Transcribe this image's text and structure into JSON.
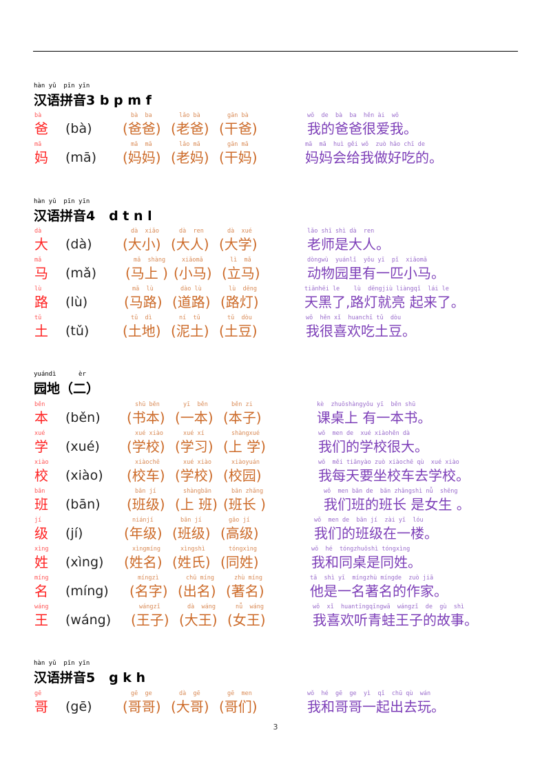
{
  "sections": [
    {
      "title_pinyin": "hàn yǔ  pīn yīn",
      "title": "汉语拼音3 b p m f",
      "rows": [
        {
          "char": "爸",
          "char_pinyin": "bà",
          "reading": "(bà)",
          "words": [
            {
              "pinyin": "bà  ba",
              "text": "(爸爸)"
            },
            {
              "pinyin": "lǎo bà",
              "text": "(老爸)"
            },
            {
              "pinyin": "gān bà",
              "text": "(干爸)"
            }
          ],
          "sentence": {
            "pinyin": "wǒ  de  bà  ba  hěn ài  wǒ",
            "text": "我的爸爸很爱我。"
          }
        },
        {
          "char": "妈",
          "char_pinyin": "mā",
          "reading": "(mā)",
          "words": [
            {
              "pinyin": "mā  mā",
              "text": "(妈妈)"
            },
            {
              "pinyin": "lǎo mā",
              "text": "(老妈)"
            },
            {
              "pinyin": "gān mā",
              "text": "(干妈)"
            }
          ],
          "sentence": {
            "pinyin": "mā  mā  huì gěi wǒ  zuò hǎo chī de",
            "text": "妈妈会给我做好吃的。"
          }
        }
      ]
    },
    {
      "title_pinyin": "hàn yǔ  pīn yīn",
      "title": "汉语拼音4   d t n l",
      "rows": [
        {
          "char": "大",
          "char_pinyin": "dà",
          "reading": "(dà)",
          "words": [
            {
              "pinyin": "dà  xiǎo",
              "text": "(大小)"
            },
            {
              "pinyin": "dà  ren",
              "text": "(大人)"
            },
            {
              "pinyin": "dà  xué",
              "text": "(大学)"
            }
          ],
          "sentence": {
            "pinyin": "lǎo shī shì dà  ren",
            "text": "老师是大人。"
          }
        },
        {
          "char": "马",
          "char_pinyin": "mǎ",
          "reading": "(mǎ)",
          "words": [
            {
              "pinyin": "mǎ  shàng",
              "text": "(马上 )"
            },
            {
              "pinyin": "xiǎomǎ",
              "text": "(小马)"
            },
            {
              "pinyin": "lì  mǎ",
              "text": "(立马)"
            }
          ],
          "sentence": {
            "pinyin": "dòngwù  yuánlǐ  yǒu yī  pǐ  xiǎomǎ",
            "text": "动物园里有一匹小马。"
          }
        },
        {
          "char": "路",
          "char_pinyin": "lù",
          "reading": "(lù)",
          "words": [
            {
              "pinyin": "mǎ  lù",
              "text": "(马路)"
            },
            {
              "pinyin": "dào lù",
              "text": "(道路)"
            },
            {
              "pinyin": "lù  dēng",
              "text": "(路灯)"
            }
          ],
          "sentence": {
            "pinyin": "tiānhēi le    lù  dēngjiù liàngqǐ  lái le",
            "text": "天黑了,路灯就亮 起来了。"
          }
        },
        {
          "char": "土",
          "char_pinyin": "tǔ",
          "reading": "(tǔ)",
          "words": [
            {
              "pinyin": "tǔ  dì",
              "text": "(土地)"
            },
            {
              "pinyin": "ní  tǔ",
              "text": "(泥土)"
            },
            {
              "pinyin": "tǔ  dòu",
              "text": "(土豆)"
            }
          ],
          "sentence": {
            "pinyin": "wǒ  hěn xǐ  huanchī tǔ  dòu",
            "text": "我很喜欢吃土豆。"
          }
        }
      ]
    },
    {
      "title_pinyin": "yuándì      èr",
      "title": "园地（二）",
      "rows": [
        {
          "char": "本",
          "char_pinyin": "běn",
          "reading": "(běn)",
          "words": [
            {
              "pinyin": "shū běn",
              "text": "(书本)"
            },
            {
              "pinyin": "yī  běn",
              "text": "(一本)"
            },
            {
              "pinyin": "běn zi",
              "text": "(本子)"
            }
          ],
          "sentence": {
            "pinyin": "kè  zhuōshàngyǒu yī  běn shū",
            "text": "课桌上 有一本书。"
          }
        },
        {
          "char": "学",
          "char_pinyin": "xué",
          "reading": "(xué)",
          "words": [
            {
              "pinyin": "xué xiào",
              "text": "(学校)"
            },
            {
              "pinyin": "xué xí",
              "text": "(学习)"
            },
            {
              "pinyin": "shàngxué",
              "text": "(上 学)"
            }
          ],
          "sentence": {
            "pinyin": "wǒ  men de  xué xiàohěn dà",
            "text": "我们的学校很大。"
          }
        },
        {
          "char": "校",
          "char_pinyin": "xiào",
          "reading": "(xiào)",
          "words": [
            {
              "pinyin": "xiàochē",
              "text": "(校车)"
            },
            {
              "pinyin": "xué xiào",
              "text": "(学校)"
            },
            {
              "pinyin": "xiàoyuán",
              "text": "(校园)"
            }
          ],
          "sentence": {
            "pinyin": "wǒ  měi tiānyào zuò xiàochē qù  xué xiào",
            "text": "我每天要坐校车去学校。"
          }
        },
        {
          "char": "班",
          "char_pinyin": "bān",
          "reading": "(bān)",
          "words": [
            {
              "pinyin": "bān jí",
              "text": "(班级)"
            },
            {
              "pinyin": "shàngbān",
              "text": "(上 班)"
            },
            {
              "pinyin": "bān zhǎng",
              "text": "(班长 )"
            }
          ],
          "sentence": {
            "pinyin": "wǒ  men bān de  bān zhǎngshì nǚ  shēng",
            "text": "我们班的班长 是女生 。"
          }
        },
        {
          "char": "级",
          "char_pinyin": "jí",
          "reading": "(jí)",
          "words": [
            {
              "pinyin": "niánjí",
              "text": "(年级)"
            },
            {
              "pinyin": "bān jí",
              "text": "(班级)"
            },
            {
              "pinyin": "gāo jí",
              "text": "(高级)"
            }
          ],
          "sentence": {
            "pinyin": "wǒ  men de  bān jí  zài yī  lóu",
            "text": "我们的班级在一楼。"
          }
        },
        {
          "char": "姓",
          "char_pinyin": "xìng",
          "reading": "(xìng)",
          "words": [
            {
              "pinyin": "xìngmíng",
              "text": "(姓名)"
            },
            {
              "pinyin": "xìngshì",
              "text": "(姓氏)"
            },
            {
              "pinyin": "tóngxìng",
              "text": "(同姓)"
            }
          ],
          "sentence": {
            "pinyin": "wǒ  hé  tóngzhuōshì tóngxìng",
            "text": "我和同桌是同姓。"
          }
        },
        {
          "char": "名",
          "char_pinyin": "míng",
          "reading": "(míng)",
          "words": [
            {
              "pinyin": "míngzì",
              "text": "(名字)"
            },
            {
              "pinyin": "chū míng",
              "text": "(出名)"
            },
            {
              "pinyin": "zhù míng",
              "text": "(著名)"
            }
          ],
          "sentence": {
            "pinyin": "tā  shì yī  míngzhù míngde  zuò jiā",
            "text": "他是一名著名的作家。"
          }
        },
        {
          "char": "王",
          "char_pinyin": "wáng",
          "reading": "(wáng)",
          "words": [
            {
              "pinyin": "wángzǐ",
              "text": "(王子)"
            },
            {
              "pinyin": "dà  wáng",
              "text": "(大王)"
            },
            {
              "pinyin": "nǚ  wáng",
              "text": "(女王)"
            }
          ],
          "sentence": {
            "pinyin": "wǒ  xǐ  huantīngqīngwā  wángzǐ  de  gù  shì",
            "text": "我喜欢听青蛙王子的故事。"
          }
        }
      ]
    },
    {
      "title_pinyin": "hàn yǔ  pīn yīn",
      "title": "汉语拼音5   g k h",
      "rows": [
        {
          "char": "哥",
          "char_pinyin": "gē",
          "reading": "(gē)",
          "words": [
            {
              "pinyin": "gē  ge",
              "text": "(哥哥)"
            },
            {
              "pinyin": "dà  gē",
              "text": "(大哥)"
            },
            {
              "pinyin": "gē  men",
              "text": "(哥们)"
            }
          ],
          "sentence": {
            "pinyin": "wǒ  hé  gē  ge  yì  qǐ  chū qù  wán",
            "text": "我和哥哥一起出去玩。"
          }
        }
      ]
    }
  ],
  "page_number": "3",
  "colors": {
    "char": "#ff2222",
    "words": "#cc6a28",
    "sentence": "#7d3fb8"
  }
}
